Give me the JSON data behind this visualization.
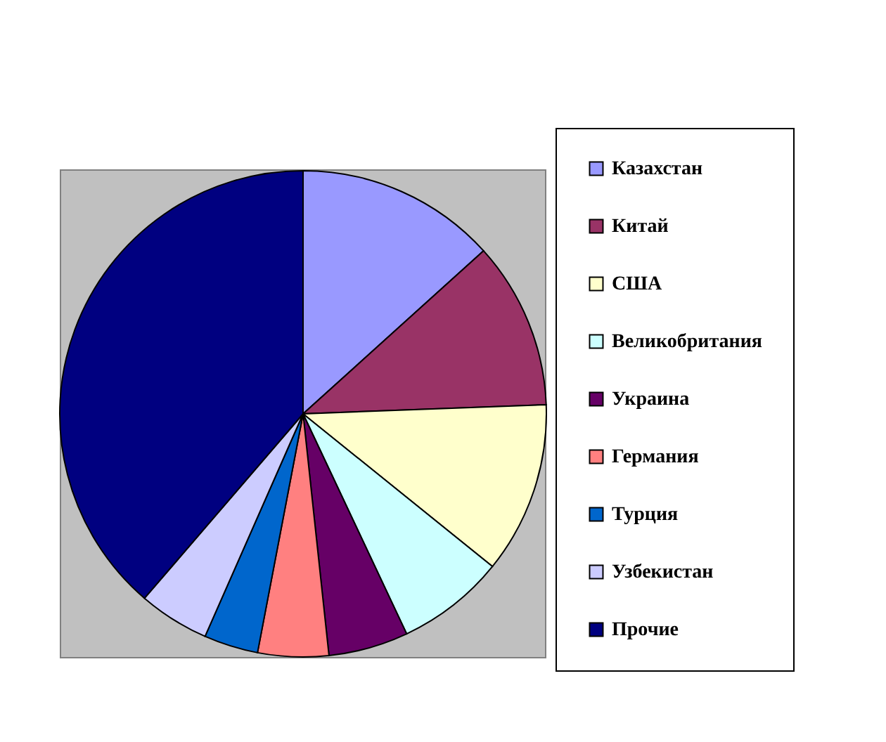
{
  "chart_data": {
    "type": "pie",
    "categories": [
      "Казахстан",
      "Китай",
      "США",
      "Великобритания",
      "Украина",
      "Германия",
      "Турция",
      "Узбекистан",
      "Прочие"
    ],
    "values": [
      13.3,
      11.1,
      11.4,
      7.2,
      5.3,
      4.7,
      3.6,
      4.7,
      38.7
    ],
    "colors": [
      "#9999ff",
      "#993366",
      "#ffffcc",
      "#ccffff",
      "#660066",
      "#ff8080",
      "#0066cc",
      "#ccccff",
      "#000080"
    ],
    "legend": "right"
  }
}
